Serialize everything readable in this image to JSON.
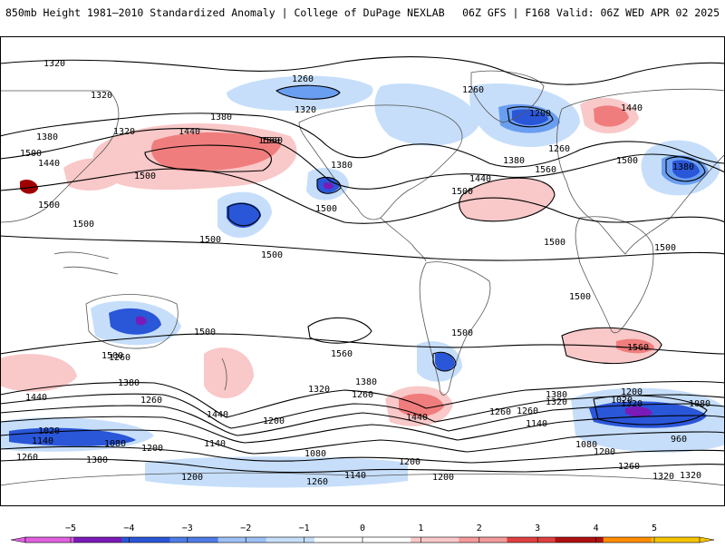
{
  "header": {
    "left_title": "850mb Height 1981–2010 Standardized Anomaly | College of DuPage NEXLAB",
    "right_title": "06Z GFS | F168 Valid: 06Z WED APR 02 2025"
  },
  "colors": {
    "ocean": "#ffffff",
    "contour": "#000000",
    "coast": "#555555",
    "anom_pos1": "#f9c8c8",
    "anom_pos2": "#f07d7d",
    "anom_pos3": "#e04040",
    "anom_pos4": "#a00000",
    "anom_neg1": "#c6defa",
    "anom_neg2": "#6a9ef0",
    "anom_neg3": "#2a56d8",
    "anom_neg4": "#7a1ab8",
    "anom_neg5": "#e060e0"
  },
  "contour_labels": [
    "1320",
    "1320",
    "1320",
    "1260",
    "1320",
    "1260",
    "1260",
    "1200",
    "1440",
    "1380",
    "1440",
    "1560",
    "1380",
    "1500",
    "1440",
    "1500",
    "1560",
    "1500",
    "1500",
    "1500",
    "1500",
    "1500",
    "1440",
    "1380",
    "1380",
    "1500",
    "1500",
    "1500",
    "1500",
    "1500",
    "1500",
    "1560",
    "1380",
    "1500",
    "1500",
    "1560",
    "1560",
    "1440",
    "1380",
    "1260",
    "1440",
    "1320",
    "1380",
    "1260",
    "1440",
    "1380",
    "1320",
    "1260",
    "1200",
    "1200",
    "1320",
    "1260",
    "1080",
    "1020",
    "1140",
    "1080",
    "1200",
    "1260",
    "1380",
    "1140",
    "1200",
    "1080",
    "1200",
    "1140",
    "1200",
    "1260",
    "1320",
    "1020",
    "960",
    "1140",
    "1080",
    "1200",
    "1260",
    "1320",
    "1260"
  ],
  "legend": {
    "ticks": [
      "−5",
      "−4",
      "−3",
      "−2",
      "−1",
      "0",
      "1",
      "2",
      "3",
      "4",
      "5"
    ],
    "colors": [
      "#e060e0",
      "#7a1ab8",
      "#2a56d8",
      "#4f7ce6",
      "#9dc0f5",
      "#c6defa",
      "#ffffff",
      "#ffffff",
      "#f9c8c8",
      "#f49a9a",
      "#e04040",
      "#b01010",
      "#ff8c00",
      "#f5c400"
    ]
  }
}
